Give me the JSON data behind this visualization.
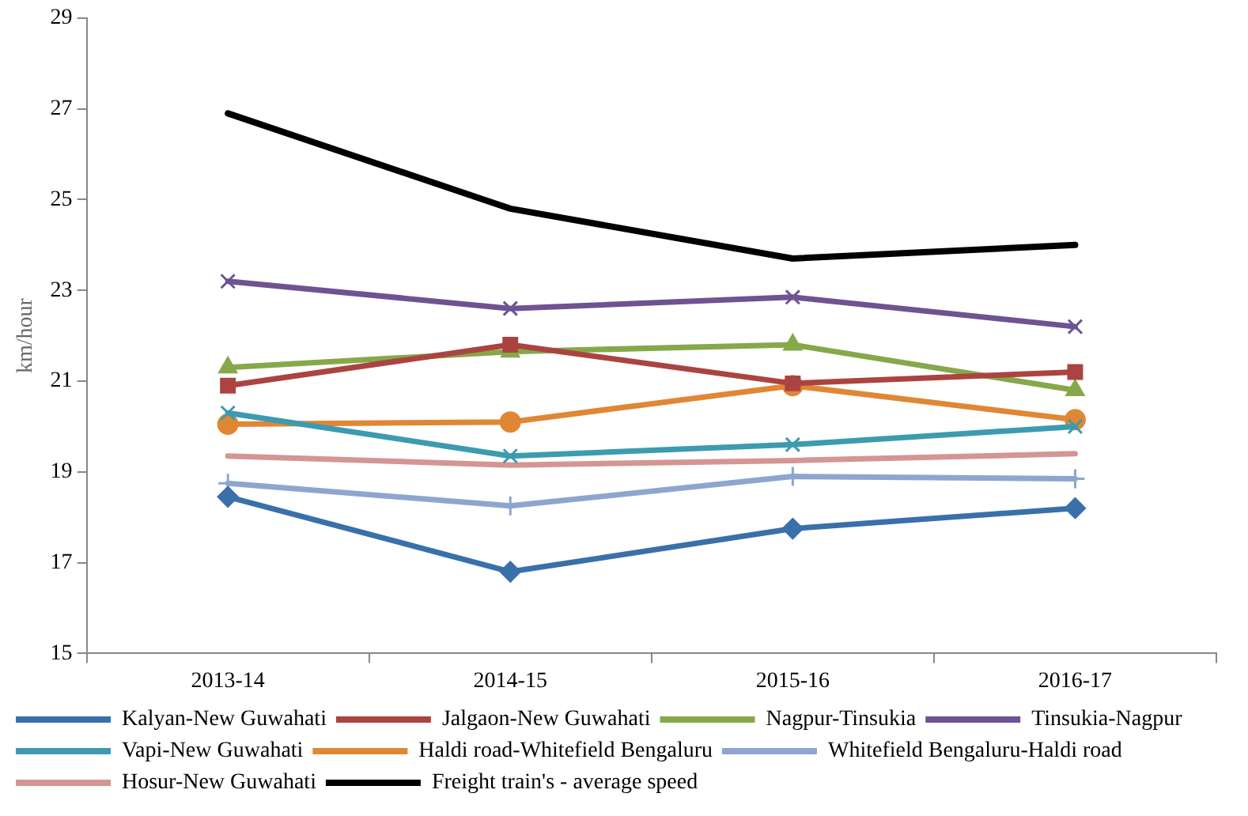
{
  "chart_data": {
    "type": "line",
    "ylabel": "km/hour",
    "categories": [
      "2013-14",
      "2014-15",
      "2015-16",
      "2016-17"
    ],
    "ylim": [
      15,
      29
    ],
    "yticks": [
      15,
      17,
      19,
      21,
      23,
      25,
      27,
      29
    ],
    "grid": false,
    "legend": "bottom",
    "line_style": "solid",
    "series": [
      {
        "name": "Kalyan-New Guwahati",
        "color": "#3a70aa",
        "marker": "diamond",
        "values": [
          18.45,
          16.8,
          17.75,
          18.2
        ]
      },
      {
        "name": "Jalgaon-New Guwahati",
        "color": "#ab4441",
        "marker": "square",
        "values": [
          20.9,
          21.8,
          20.95,
          21.2
        ]
      },
      {
        "name": "Nagpur-Tinsukia",
        "color": "#87a84a",
        "marker": "triangle",
        "values": [
          21.3,
          21.65,
          21.8,
          20.8
        ]
      },
      {
        "name": "Tinsukia-Nagpur",
        "color": "#6e5393",
        "marker": "cross",
        "values": [
          23.2,
          22.6,
          22.85,
          22.2
        ]
      },
      {
        "name": "Vapi-New Guwahati",
        "color": "#3d9bb0",
        "marker": "cross",
        "values": [
          20.3,
          19.35,
          19.6,
          20.0
        ]
      },
      {
        "name": "Haldi road-Whitefield Bengaluru",
        "color": "#e08735",
        "marker": "circle",
        "values": [
          20.05,
          20.1,
          20.9,
          20.15
        ]
      },
      {
        "name": "Whitefield Bengaluru-Haldi road",
        "color": "#8da6cf",
        "marker": "plus",
        "values": [
          18.75,
          18.25,
          18.9,
          18.85
        ]
      },
      {
        "name": "Hosur-New Guwahati",
        "color": "#d49593",
        "marker": "none",
        "values": [
          19.35,
          19.15,
          19.25,
          19.4
        ]
      },
      {
        "name": "Freight train's - average speed",
        "color": "#000000",
        "marker": "none",
        "values": [
          26.9,
          24.8,
          23.7,
          24.0
        ]
      }
    ]
  }
}
